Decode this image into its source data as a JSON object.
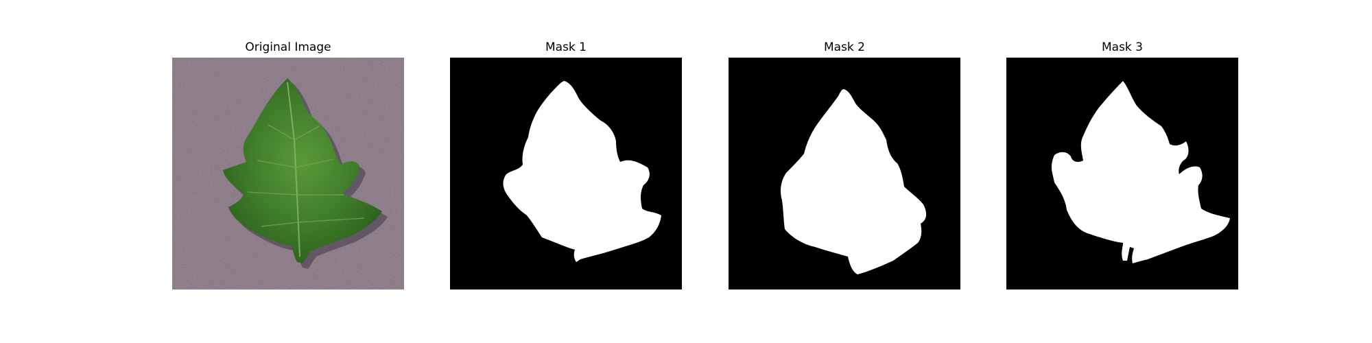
{
  "panels": [
    {
      "title": "Original Image"
    },
    {
      "title": "Mask 1"
    },
    {
      "title": "Mask 2"
    },
    {
      "title": "Mask 3"
    }
  ],
  "colors": {
    "background": "#8a7a86",
    "leaf": "#3f7a2a",
    "mask_background": "#000000",
    "mask_foreground": "#ffffff"
  }
}
